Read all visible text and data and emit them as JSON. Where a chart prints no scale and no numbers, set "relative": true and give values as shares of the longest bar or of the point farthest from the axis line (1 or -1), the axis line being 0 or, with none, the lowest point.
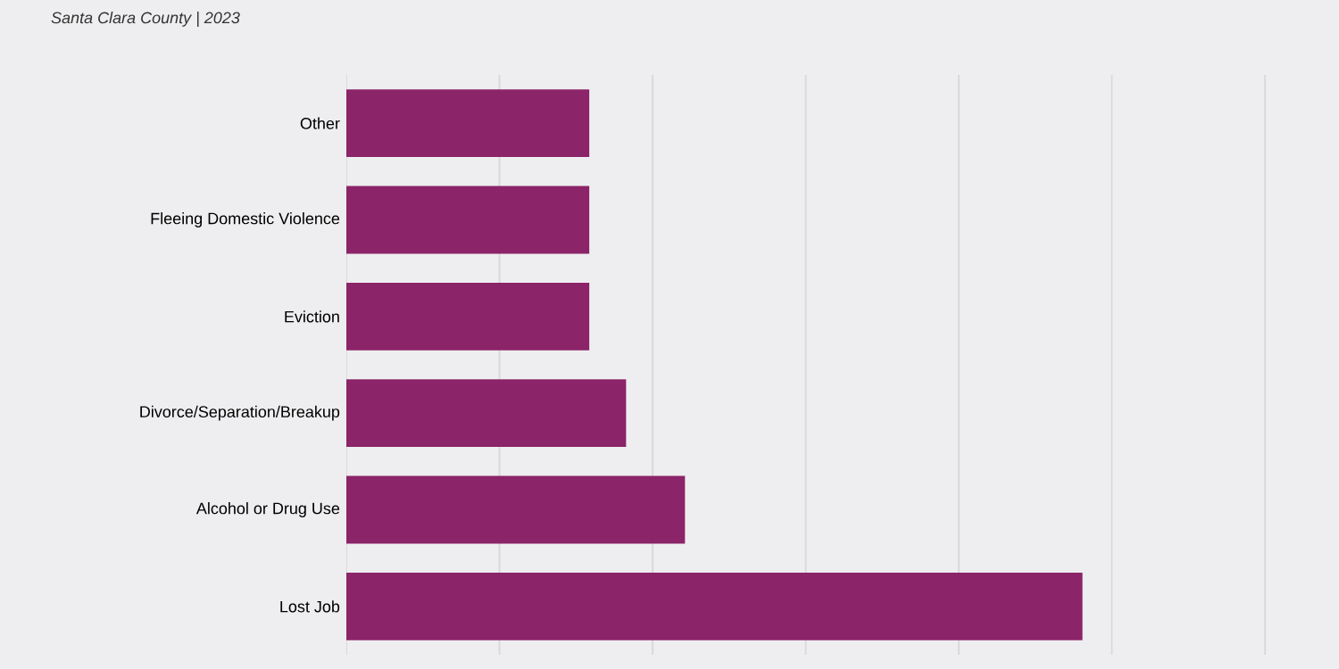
{
  "chart_data": {
    "type": "bar",
    "orientation": "horizontal",
    "relative": true,
    "subtitle": "Santa Clara County | 2023",
    "categories": [
      "Other",
      "Fleeing Domestic Violence",
      "Eviction",
      "Divorce/Separation/Breakup",
      "Alcohol or Drug Use",
      "Lost Job"
    ],
    "values": [
      0.33,
      0.33,
      0.33,
      0.38,
      0.46,
      1
    ],
    "color": "#8b2468",
    "grid": "x"
  }
}
